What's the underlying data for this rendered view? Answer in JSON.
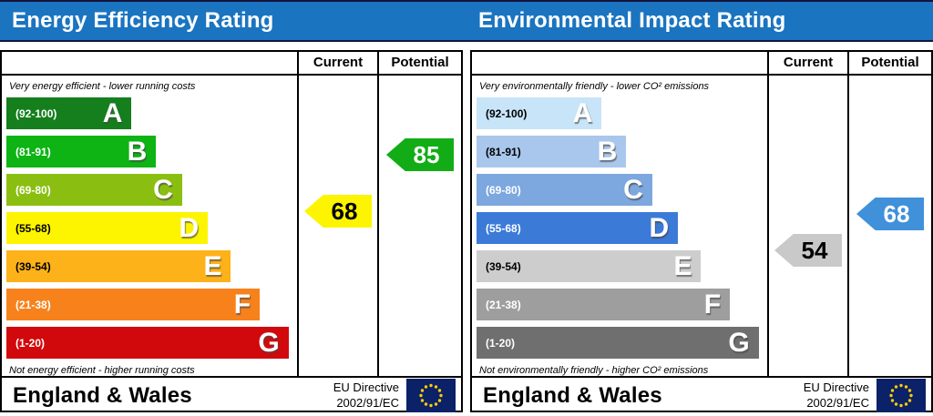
{
  "left_panel": {
    "title": "Energy Efficiency Rating",
    "columns": {
      "current": "Current",
      "potential": "Potential"
    },
    "top_note": "Very energy efficient - lower running costs",
    "bottom_note": "Not energy efficient - higher running costs",
    "bands": [
      {
        "letter": "A",
        "range": "(92-100)",
        "color": "#157f1e",
        "label_color": "#ffffff",
        "width": "43.5%"
      },
      {
        "letter": "B",
        "range": "(81-91)",
        "color": "#0db414",
        "label_color": "#ffffff",
        "width": "52%"
      },
      {
        "letter": "C",
        "range": "(69-80)",
        "color": "#8abf12",
        "label_color": "#ffffff",
        "width": "61%"
      },
      {
        "letter": "D",
        "range": "(55-68)",
        "color": "#fdf400",
        "label_color": "#000000",
        "width": "70%"
      },
      {
        "letter": "E",
        "range": "(39-54)",
        "color": "#fdb219",
        "label_color": "#000000",
        "width": "78%"
      },
      {
        "letter": "F",
        "range": "(21-38)",
        "color": "#f7821c",
        "label_color": "#ffffff",
        "width": "88%"
      },
      {
        "letter": "G",
        "range": "(1-20)",
        "color": "#d2090c",
        "label_color": "#ffffff",
        "width": "98%"
      }
    ],
    "current": {
      "value": "68",
      "color": "#fdf400",
      "text_color": "#000000"
    },
    "potential": {
      "value": "85",
      "color": "#12ad16",
      "text_color": "#ffffff"
    },
    "footer": {
      "region": "England & Wales",
      "directive_line1": "EU Directive",
      "directive_line2": "2002/91/EC"
    }
  },
  "right_panel": {
    "title": "Environmental Impact Rating",
    "columns": {
      "current": "Current",
      "potential": "Potential"
    },
    "top_note": "Very environmentally friendly - lower CO² emissions",
    "bottom_note": "Not environmentally friendly - higher CO² emissions",
    "bands": [
      {
        "letter": "A",
        "range": "(92-100)",
        "color": "#c8e4f8",
        "label_color": "#000000",
        "width": "43.5%"
      },
      {
        "letter": "B",
        "range": "(81-91)",
        "color": "#a9c6ec",
        "label_color": "#000000",
        "width": "52%"
      },
      {
        "letter": "C",
        "range": "(69-80)",
        "color": "#7ca7df",
        "label_color": "#ffffff",
        "width": "61%"
      },
      {
        "letter": "D",
        "range": "(55-68)",
        "color": "#3c7ad8",
        "label_color": "#ffffff",
        "width": "70%"
      },
      {
        "letter": "E",
        "range": "(39-54)",
        "color": "#cdcdcd",
        "label_color": "#000000",
        "width": "78%"
      },
      {
        "letter": "F",
        "range": "(21-38)",
        "color": "#9e9e9e",
        "label_color": "#ffffff",
        "width": "88%"
      },
      {
        "letter": "G",
        "range": "(1-20)",
        "color": "#6f6f6f",
        "label_color": "#ffffff",
        "width": "98%"
      }
    ],
    "current": {
      "value": "54",
      "color": "#c9c9c9",
      "text_color": "#000000"
    },
    "potential": {
      "value": "68",
      "color": "#4090da",
      "text_color": "#ffffff"
    },
    "footer": {
      "region": "England & Wales",
      "directive_line1": "EU Directive",
      "directive_line2": "2002/91/EC"
    }
  },
  "eu_flag": {
    "field_color": "#0b2168",
    "star_color": "#ffcc00"
  },
  "accent_color": "#1b74c0",
  "chart_data": [
    {
      "type": "bar",
      "title": "Energy Efficiency Rating",
      "orientation": "horizontal",
      "categories": [
        "A",
        "B",
        "C",
        "D",
        "E",
        "F",
        "G"
      ],
      "band_ranges": [
        [
          92,
          100
        ],
        [
          81,
          91
        ],
        [
          69,
          80
        ],
        [
          55,
          68
        ],
        [
          39,
          54
        ],
        [
          21,
          38
        ],
        [
          1,
          20
        ]
      ],
      "values": [
        100,
        91,
        80,
        68,
        54,
        38,
        20
      ],
      "current": 68,
      "potential": 85,
      "xlim": [
        1,
        100
      ],
      "annotations": [
        "Very energy efficient - lower running costs",
        "Not energy efficient - higher running costs"
      ],
      "legend_position": "top",
      "columns": [
        "Current",
        "Potential"
      ]
    },
    {
      "type": "bar",
      "title": "Environmental Impact Rating",
      "orientation": "horizontal",
      "categories": [
        "A",
        "B",
        "C",
        "D",
        "E",
        "F",
        "G"
      ],
      "band_ranges": [
        [
          92,
          100
        ],
        [
          81,
          91
        ],
        [
          69,
          80
        ],
        [
          55,
          68
        ],
        [
          39,
          54
        ],
        [
          21,
          38
        ],
        [
          1,
          20
        ]
      ],
      "values": [
        100,
        91,
        80,
        68,
        54,
        38,
        20
      ],
      "current": 54,
      "potential": 68,
      "xlim": [
        1,
        100
      ],
      "annotations": [
        "Very environmentally friendly - lower CO² emissions",
        "Not environmentally friendly - higher CO² emissions"
      ],
      "legend_position": "top",
      "columns": [
        "Current",
        "Potential"
      ]
    }
  ]
}
